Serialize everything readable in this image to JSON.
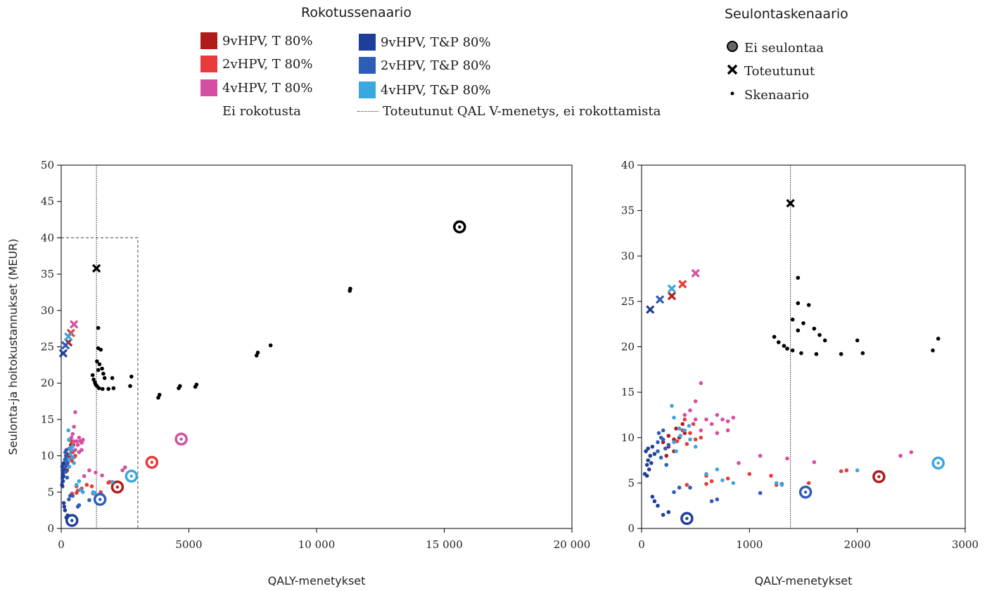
{
  "legend": {
    "vaccination_title": "Rokotussenaario",
    "screening_title": "Seulontaskenaario",
    "vaccination_items": [
      {
        "label": "9vHPV, T 80%",
        "color": "#b01c1c"
      },
      {
        "label": "2vHPV, T 80%",
        "color": "#e83a3a"
      },
      {
        "label": "4vHPV, T 80%",
        "color": "#d44fa3"
      },
      {
        "label": "9vHPV, T&P 80%",
        "color": "#1e3f99"
      },
      {
        "label": "2vHPV, T&P 80%",
        "color": "#2e5db8"
      },
      {
        "label": "4vHPV, T&P 80%",
        "color": "#3aa7e0"
      }
    ],
    "no_vaccination_label": "Ei rokotusta",
    "reference_line_label": "Toteutunut QAL V-menetys, ei rokottamista",
    "screening_items": [
      {
        "label": "Ei seulontaa",
        "icon": "circle-icon"
      },
      {
        "label": "Toteutunut",
        "icon": "cross-icon"
      },
      {
        "label": "Skenaario",
        "icon": "dot-icon"
      }
    ]
  },
  "chart_data": [
    {
      "type": "scatter",
      "title": "",
      "xlabel": "QALY-menetykset",
      "ylabel": "Seulonta-ja hoitokustannukset (MEUR)",
      "xlim": [
        0,
        20000
      ],
      "ylim": [
        0,
        50
      ],
      "xticks": [
        0,
        5000,
        10000,
        15000,
        20000
      ],
      "xtick_labels": [
        "0",
        "5000",
        "10 000",
        "15 000",
        "20 000"
      ],
      "yticks": [
        0,
        5,
        10,
        15,
        20,
        25,
        30,
        35,
        40,
        45,
        50
      ],
      "reference_line_x": 1380,
      "zoom_box": {
        "x": [
          0,
          3000
        ],
        "y": [
          0,
          40
        ]
      },
      "series": [
        {
          "name": "Ei rokotusta",
          "color": "#000000",
          "no_screening": [
            [
              15600,
              41.5
            ]
          ],
          "realized": [
            [
              1380,
              35.8
            ]
          ],
          "scenarios": [
            [
              1450,
              27.6
            ],
            [
              1450,
              24.8
            ],
            [
              1550,
              24.6
            ],
            [
              1400,
              23.0
            ],
            [
              1500,
              22.6
            ],
            [
              1600,
              22.0
            ],
            [
              1450,
              21.8
            ],
            [
              1650,
              21.3
            ],
            [
              1700,
              20.7
            ],
            [
              1230,
              21.1
            ],
            [
              1270,
              20.5
            ],
            [
              1320,
              20.1
            ],
            [
              1350,
              19.8
            ],
            [
              1400,
              19.6
            ],
            [
              1480,
              19.3
            ],
            [
              1620,
              19.2
            ],
            [
              1850,
              19.2
            ],
            [
              2050,
              19.3
            ],
            [
              2000,
              20.7
            ],
            [
              2700,
              19.6
            ],
            [
              2750,
              20.9
            ],
            [
              3800,
              18.0
            ],
            [
              3850,
              18.4
            ],
            [
              4600,
              19.3
            ],
            [
              4650,
              19.6
            ],
            [
              5250,
              19.5
            ],
            [
              5300,
              19.8
            ],
            [
              7650,
              23.8
            ],
            [
              7700,
              24.2
            ],
            [
              8200,
              25.2
            ],
            [
              11300,
              32.7
            ],
            [
              11320,
              33.0
            ]
          ]
        },
        {
          "name": "9vHPV, T 80%",
          "color": "#b01c1c",
          "no_screening": [
            [
              2200,
              5.7
            ]
          ],
          "realized": [
            [
              280,
              25.6
            ]
          ],
          "scenarios": [
            [
              200,
              9.5
            ],
            [
              250,
              9.0
            ],
            [
              300,
              8.5
            ],
            [
              250,
              10.2
            ],
            [
              320,
              11.0
            ],
            [
              350,
              10.0
            ],
            [
              230,
              8.0
            ],
            [
              400,
              10.5
            ],
            [
              300,
              9.8
            ],
            [
              380,
              11.5
            ]
          ]
        },
        {
          "name": "2vHPV, T 80%",
          "color": "#e83a3a",
          "no_screening": [
            [
              3550,
              9.1
            ]
          ],
          "realized": [
            [
              380,
              26.9
            ]
          ],
          "scenarios": [
            [
              350,
              11.0
            ],
            [
              400,
              12.0
            ],
            [
              450,
              10.5
            ],
            [
              500,
              9.8
            ],
            [
              550,
              10.0
            ],
            [
              420,
              9.3
            ],
            [
              600,
              5.8
            ],
            [
              650,
              5.2
            ],
            [
              800,
              5.5
            ],
            [
              1000,
              6.0
            ],
            [
              1200,
              5.8
            ],
            [
              1250,
              4.8
            ],
            [
              1850,
              6.3
            ],
            [
              1900,
              6.4
            ],
            [
              1550,
              5.0
            ],
            [
              420,
              4.8
            ],
            [
              600,
              4.9
            ],
            [
              380,
              10.8
            ],
            [
              480,
              11.5
            ],
            [
              330,
              9.6
            ]
          ]
        },
        {
          "name": "4vHPV, T 80%",
          "color": "#d44fa3",
          "no_screening": [
            [
              4700,
              12.3
            ]
          ],
          "realized": [
            [
              500,
              28.1
            ]
          ],
          "scenarios": [
            [
              450,
              13.0
            ],
            [
              500,
              14.0
            ],
            [
              550,
              16.0
            ],
            [
              600,
              12.0
            ],
            [
              650,
              11.5
            ],
            [
              700,
              12.5
            ],
            [
              750,
              12.0
            ],
            [
              800,
              11.8
            ],
            [
              850,
              12.2
            ],
            [
              400,
              12.5
            ],
            [
              500,
              12.0
            ],
            [
              550,
              10.8
            ],
            [
              700,
              10.5
            ],
            [
              800,
              10.8
            ],
            [
              900,
              7.2
            ],
            [
              1100,
              8.0
            ],
            [
              1350,
              7.7
            ],
            [
              1600,
              7.3
            ],
            [
              2400,
              8.0
            ],
            [
              2500,
              8.4
            ]
          ]
        },
        {
          "name": "9vHPV, T&P 80%",
          "color": "#1e3f99",
          "no_screening": [
            [
              420,
              1.1
            ]
          ],
          "realized": [
            [
              80,
              24.1
            ]
          ],
          "scenarios": [
            [
              30,
              6.0
            ],
            [
              50,
              7.0
            ],
            [
              60,
              7.5
            ],
            [
              80,
              8.0
            ],
            [
              40,
              8.5
            ],
            [
              70,
              6.5
            ],
            [
              90,
              7.2
            ],
            [
              100,
              3.5
            ],
            [
              120,
              3.0
            ],
            [
              150,
              2.5
            ],
            [
              200,
              1.5
            ],
            [
              250,
              1.8
            ],
            [
              60,
              8.8
            ],
            [
              100,
              9.0
            ],
            [
              120,
              8.2
            ],
            [
              50,
              5.8
            ]
          ]
        },
        {
          "name": "2vHPV, T&P 80%",
          "color": "#2e5db8",
          "no_screening": [
            [
              1520,
              4.0
            ]
          ],
          "realized": [
            [
              170,
              25.2
            ]
          ],
          "scenarios": [
            [
              150,
              9.5
            ],
            [
              180,
              10.0
            ],
            [
              200,
              10.8
            ],
            [
              220,
              8.8
            ],
            [
              250,
              9.2
            ],
            [
              150,
              8.5
            ],
            [
              180,
              7.8
            ],
            [
              230,
              7.0
            ],
            [
              300,
              4.0
            ],
            [
              350,
              4.5
            ],
            [
              450,
              4.5
            ],
            [
              650,
              3.0
            ],
            [
              700,
              3.2
            ],
            [
              1100,
              3.9
            ],
            [
              1300,
              4.9
            ],
            [
              200,
              9.8
            ],
            [
              160,
              10.5
            ]
          ]
        },
        {
          "name": "4vHPV, T&P 80%",
          "color": "#3aa7e0",
          "no_screening": [
            [
              2750,
              7.2
            ]
          ],
          "realized": [
            [
              280,
              26.4
            ]
          ],
          "scenarios": [
            [
              280,
              13.5
            ],
            [
              300,
              12.2
            ],
            [
              350,
              11.0
            ],
            [
              400,
              10.8
            ],
            [
              450,
              9.8
            ],
            [
              300,
              9.5
            ],
            [
              500,
              9.0
            ],
            [
              320,
              8.5
            ],
            [
              600,
              6.0
            ],
            [
              700,
              6.5
            ],
            [
              750,
              5.3
            ],
            [
              850,
              5.0
            ],
            [
              1250,
              5.0
            ],
            [
              1300,
              4.8
            ],
            [
              2000,
              6.4
            ],
            [
              360,
              10.2
            ],
            [
              440,
              11.3
            ]
          ]
        }
      ]
    },
    {
      "type": "scatter",
      "title": "",
      "xlabel": "QALY-menetykset",
      "ylabel": "",
      "xlim": [
        0,
        3000
      ],
      "ylim": [
        0,
        40
      ],
      "xticks": [
        0,
        1000,
        2000,
        3000
      ],
      "xtick_labels": [
        "0",
        "1000",
        "2000",
        "3000"
      ],
      "yticks": [
        0,
        5,
        10,
        15,
        20,
        25,
        30,
        35,
        40
      ],
      "reference_line_x": 1380,
      "same_data_as_panel": 0
    }
  ]
}
